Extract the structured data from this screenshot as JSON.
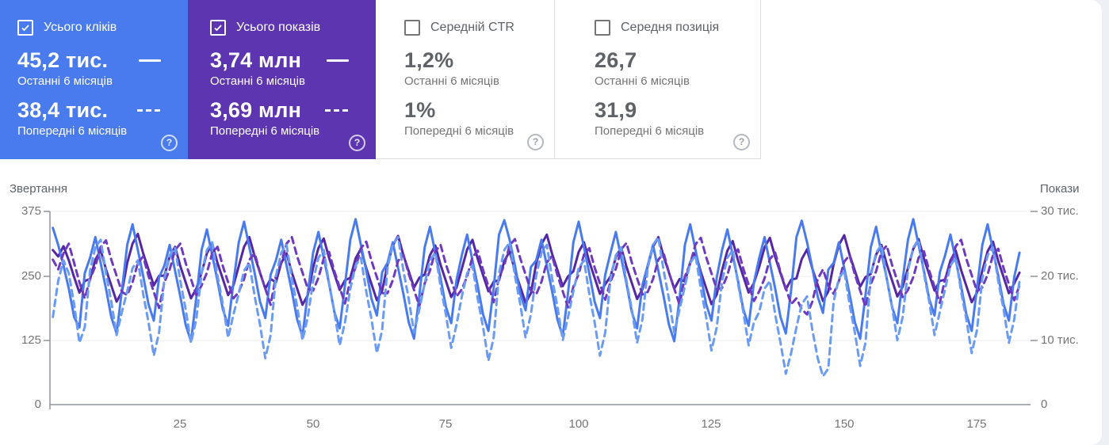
{
  "cards": [
    {
      "label": "Усього кліків",
      "checked": true,
      "color": "#4a7bee",
      "value_current": "45,2 тис.",
      "period_current": "Останні 6 місяців",
      "value_previous": "38,4 тис.",
      "period_previous": "Попередні 6 місяців",
      "help": "?"
    },
    {
      "label": "Усього показів",
      "checked": true,
      "color": "#5e35b1",
      "value_current": "3,74 млн",
      "period_current": "Останні 6 місяців",
      "value_previous": "3,69 млн",
      "period_previous": "Попередні 6 місяців",
      "help": "?"
    },
    {
      "label": "Середній CTR",
      "checked": false,
      "color": "",
      "value_current": "1,2%",
      "period_current": "Останні 6 місяців",
      "value_previous": "1%",
      "period_previous": "Попередні 6 місяців",
      "help": "?"
    },
    {
      "label": "Середня позиція",
      "checked": false,
      "color": "",
      "value_current": "26,7",
      "period_current": "Останні 6 місяців",
      "value_previous": "31,9",
      "period_previous": "Попередні 6 місяців",
      "help": "?"
    }
  ],
  "chart_data": {
    "type": "line",
    "x_axis": {
      "ticks": [
        "25",
        "50",
        "75",
        "100",
        "125",
        "150",
        "175"
      ],
      "max_days": 183
    },
    "left_axis": {
      "title": "Звертання",
      "ticks": [
        "375",
        "250",
        "125",
        "0"
      ],
      "max": 375
    },
    "right_axis": {
      "title": "Покази",
      "ticks": [
        "30 тис.",
        "20 тис.",
        "10 тис.",
        "0"
      ],
      "max": 30,
      "unit": "тис."
    },
    "grid": true,
    "series": [
      {
        "name": "Усього кліків — Останні 6 місяців",
        "axis": "left",
        "style": "solid",
        "color": "#4a7bee",
        "values": [
          343,
          310,
          270,
          225,
          170,
          150,
          255,
          285,
          325,
          275,
          225,
          170,
          138,
          222,
          310,
          350,
          300,
          250,
          195,
          163,
          247,
          270,
          310,
          260,
          210,
          155,
          123,
          207,
          300,
          340,
          290,
          240,
          185,
          153,
          237,
          315,
          355,
          305,
          255,
          200,
          168,
          252,
          280,
          320,
          270,
          220,
          165,
          133,
          217,
          295,
          335,
          285,
          235,
          180,
          148,
          232,
          320,
          360,
          310,
          260,
          205,
          173,
          257,
          275,
          315,
          265,
          215,
          160,
          128,
          212,
          305,
          345,
          295,
          245,
          190,
          158,
          242,
          290,
          330,
          280,
          230,
          175,
          143,
          227,
          330,
          358,
          320,
          270,
          215,
          183,
          267,
          280,
          320,
          270,
          220,
          165,
          133,
          217,
          315,
          355,
          305,
          255,
          200,
          168,
          252,
          295,
          335,
          285,
          235,
          180,
          148,
          232,
          270,
          310,
          260,
          210,
          155,
          123,
          207,
          310,
          350,
          300,
          250,
          195,
          163,
          247,
          300,
          340,
          290,
          240,
          185,
          153,
          237,
          285,
          325,
          275,
          225,
          170,
          138,
          222,
          325,
          357,
          315,
          265,
          210,
          178,
          262,
          275,
          315,
          265,
          215,
          160,
          128,
          212,
          305,
          345,
          295,
          245,
          190,
          158,
          242,
          320,
          360,
          310,
          260,
          205,
          173,
          257,
          290,
          330,
          280,
          230,
          175,
          143,
          227,
          310,
          350,
          300,
          250,
          195,
          163,
          247,
          295
        ]
      },
      {
        "name": "Усього кліків — Попередні 6 місяців",
        "axis": "left",
        "style": "dashed",
        "color": "#6c9bf4",
        "values": [
          170,
          240,
          280,
          255,
          195,
          120,
          150,
          260,
          305,
          320,
          255,
          200,
          135,
          180,
          220,
          265,
          280,
          215,
          160,
          95,
          140,
          245,
          290,
          305,
          240,
          185,
          120,
          165,
          255,
          300,
          315,
          250,
          195,
          130,
          175,
          215,
          260,
          275,
          210,
          155,
          90,
          135,
          250,
          295,
          310,
          245,
          190,
          125,
          170,
          240,
          285,
          300,
          235,
          180,
          115,
          160,
          225,
          270,
          285,
          220,
          165,
          100,
          145,
          265,
          310,
          325,
          260,
          205,
          140,
          185,
          235,
          280,
          295,
          230,
          175,
          110,
          155,
          210,
          255,
          270,
          205,
          150,
          85,
          130,
          255,
          300,
          315,
          250,
          195,
          130,
          175,
          250,
          295,
          310,
          245,
          190,
          125,
          170,
          220,
          265,
          280,
          215,
          160,
          95,
          140,
          245,
          290,
          305,
          240,
          185,
          120,
          165,
          265,
          310,
          325,
          260,
          205,
          140,
          185,
          230,
          275,
          290,
          225,
          170,
          105,
          150,
          240,
          285,
          300,
          235,
          180,
          115,
          160,
          180,
          225,
          240,
          175,
          120,
          60,
          100,
          150,
          195,
          210,
          145,
          90,
          55,
          70,
          200,
          245,
          260,
          195,
          140,
          75,
          120,
          250,
          295,
          310,
          245,
          190,
          125,
          170,
          260,
          305,
          320,
          255,
          200,
          135,
          180,
          225,
          270,
          285,
          220,
          165,
          100,
          145,
          245,
          290,
          305,
          240,
          185,
          120,
          165,
          240
        ]
      },
      {
        "name": "Усього показів — Останні 6 місяців",
        "axis": "right",
        "style": "solid",
        "color": "#5428a5",
        "values": [
          24.0,
          23.0,
          24.6,
          22.4,
          19.8,
          17.4,
          19.2,
          19.5,
          22.5,
          24.0,
          21.0,
          18.5,
          16.0,
          17.5,
          22.0,
          25.0,
          26.5,
          23.5,
          21.0,
          18.5,
          20.0,
          20.0,
          23.0,
          24.5,
          21.5,
          19.0,
          16.5,
          18.0,
          20.5,
          23.5,
          25.0,
          22.0,
          19.5,
          17.0,
          18.5,
          21.5,
          24.5,
          26.0,
          23.0,
          20.5,
          18.0,
          19.5,
          19.0,
          22.0,
          23.5,
          20.5,
          18.0,
          15.5,
          17.0,
          21.3,
          24.3,
          25.8,
          22.8,
          20.3,
          17.8,
          19.3,
          19.7,
          22.7,
          24.2,
          21.2,
          18.7,
          16.2,
          17.7,
          21.7,
          24.7,
          26.2,
          23.2,
          20.7,
          18.2,
          19.7,
          20.2,
          23.2,
          24.7,
          21.7,
          19.2,
          16.7,
          18.2,
          21.1,
          24.1,
          25.6,
          22.6,
          20.1,
          17.6,
          19.1,
          19.3,
          22.3,
          23.8,
          20.8,
          18.3,
          15.8,
          17.3,
          21.9,
          24.9,
          26.4,
          23.4,
          20.9,
          18.4,
          19.9,
          20.7,
          23.7,
          25.2,
          22.2,
          19.7,
          17.2,
          18.7,
          19.9,
          22.9,
          24.4,
          21.4,
          18.9,
          16.4,
          17.9,
          21.5,
          24.5,
          26.0,
          23.0,
          20.5,
          18.0,
          19.5,
          19.1,
          22.1,
          23.6,
          20.6,
          18.1,
          15.6,
          17.1,
          20.9,
          23.9,
          25.4,
          22.4,
          19.9,
          17.4,
          18.9,
          21.4,
          24.4,
          25.9,
          22.9,
          20.4,
          17.9,
          19.4,
          19.6,
          22.6,
          24.1,
          21.1,
          18.6,
          16.1,
          17.6,
          21.8,
          24.8,
          26.3,
          23.3,
          20.8,
          18.3,
          19.8,
          20.3,
          23.3,
          24.8,
          21.8,
          19.3,
          16.8,
          18.3,
          21.2,
          24.2,
          25.7,
          22.7,
          20.2,
          17.7,
          19.2,
          19.4,
          22.4,
          23.9,
          20.9,
          18.4,
          15.9,
          17.4,
          20.8,
          23.8,
          25.3,
          22.3,
          19.8,
          17.3,
          18.8,
          20.5
        ]
      },
      {
        "name": "Усього показів — Попередні 6 місяців",
        "axis": "right",
        "style": "dashed",
        "color": "#6d3ac0",
        "values": [
          22.5,
          21.0,
          23.5,
          25.0,
          22.0,
          19.0,
          16.5,
          19.5,
          21.5,
          24.5,
          25.5,
          22.5,
          20.0,
          17.5,
          17.0,
          19.0,
          22.0,
          23.0,
          20.0,
          17.5,
          15.0,
          19.0,
          21.0,
          24.0,
          25.0,
          22.0,
          19.5,
          17.0,
          18.5,
          20.5,
          23.5,
          24.5,
          21.5,
          19.0,
          16.5,
          17.5,
          19.5,
          22.5,
          23.5,
          20.5,
          18.0,
          15.5,
          20.0,
          22.0,
          25.0,
          26.0,
          23.0,
          20.5,
          18.0,
          17.7,
          19.7,
          22.7,
          23.7,
          20.7,
          18.2,
          15.7,
          19.3,
          21.3,
          24.3,
          25.3,
          22.3,
          19.8,
          17.3,
          17.3,
          19.3,
          22.3,
          23.3,
          20.3,
          17.8,
          15.3,
          18.8,
          20.8,
          23.8,
          24.8,
          21.8,
          19.3,
          16.8,
          17.9,
          19.9,
          22.9,
          23.9,
          20.9,
          18.4,
          15.9,
          19.7,
          21.7,
          24.7,
          25.7,
          22.7,
          20.2,
          17.7,
          17.1,
          19.1,
          22.1,
          23.1,
          20.1,
          17.6,
          15.1,
          18.3,
          20.3,
          23.3,
          24.3,
          21.3,
          18.8,
          16.3,
          19.1,
          21.1,
          24.1,
          25.1,
          22.1,
          19.6,
          17.1,
          17.5,
          19.5,
          22.5,
          23.5,
          20.5,
          18.0,
          15.5,
          19.9,
          21.9,
          24.9,
          25.9,
          22.9,
          20.4,
          17.9,
          18.1,
          20.1,
          23.1,
          24.1,
          21.1,
          18.6,
          16.1,
          17.6,
          19.6,
          22.6,
          23.6,
          20.6,
          18.1,
          15.6,
          16.5,
          14.8,
          14.0,
          16.0,
          19.5,
          21.0,
          18.5,
          17.2,
          19.2,
          22.2,
          23.2,
          20.2,
          17.7,
          15.2,
          18.7,
          20.7,
          23.7,
          24.7,
          21.7,
          19.2,
          16.7,
          17.8,
          19.8,
          22.8,
          23.8,
          20.8,
          18.3,
          15.8,
          19.6,
          21.6,
          24.6,
          25.6,
          22.6,
          20.1,
          17.6,
          18.2,
          20.2,
          23.2,
          24.2,
          21.2,
          18.7,
          16.2,
          18.5
        ]
      }
    ]
  }
}
